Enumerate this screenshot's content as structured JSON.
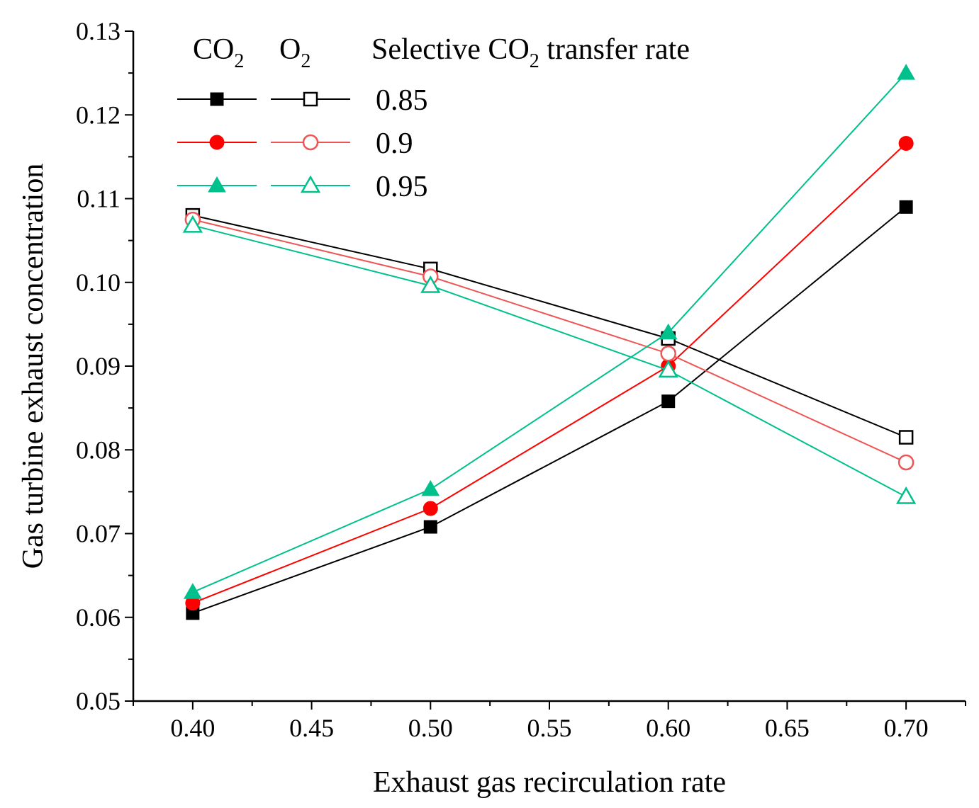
{
  "chart_data": {
    "type": "line",
    "xlabel": "Exhaust gas recirculation rate",
    "ylabel": "Gas turbine exhaust concentration",
    "xlim": [
      0.375,
      0.725
    ],
    "ylim": [
      0.05,
      0.13
    ],
    "x_ticks": [
      "0.40",
      "0.45",
      "0.50",
      "0.55",
      "0.60",
      "0.65",
      "0.70"
    ],
    "y_ticks": [
      "0.05",
      "0.06",
      "0.07",
      "0.08",
      "0.09",
      "0.10",
      "0.11",
      "0.12",
      "0.13"
    ],
    "x": [
      0.4,
      0.5,
      0.6,
      0.7
    ],
    "grid": false,
    "legend": {
      "position": "top-left",
      "col_co2": "CO",
      "col_o2": "O",
      "col_rate_pre": "Selective CO",
      "col_rate_post": " transfer rate",
      "subscript": "2",
      "rates": [
        "0.85",
        "0.9",
        "0.95"
      ]
    },
    "series": [
      {
        "rate": "0.85",
        "gas": "CO2",
        "color": "#000000",
        "marker": "square",
        "filled": true,
        "values": [
          0.0605,
          0.0708,
          0.0858,
          0.109
        ]
      },
      {
        "rate": "0.85",
        "gas": "O2",
        "color": "#000000",
        "marker": "square",
        "filled": false,
        "values": [
          0.108,
          0.1016,
          0.0933,
          0.0815
        ]
      },
      {
        "rate": "0.9",
        "gas": "CO2",
        "color": "#ff0000",
        "marker": "circle",
        "filled": true,
        "values": [
          0.0617,
          0.073,
          0.09,
          0.1166
        ]
      },
      {
        "rate": "0.9",
        "gas": "O2",
        "color": "#ee5555",
        "marker": "circle",
        "filled": false,
        "values": [
          0.1075,
          0.1007,
          0.0915,
          0.0785
        ]
      },
      {
        "rate": "0.95",
        "gas": "CO2",
        "color": "#00c08b",
        "marker": "triangle",
        "filled": true,
        "values": [
          0.063,
          0.0753,
          0.094,
          0.125
        ]
      },
      {
        "rate": "0.95",
        "gas": "O2",
        "color": "#00c08b",
        "marker": "triangle",
        "filled": false,
        "values": [
          0.1068,
          0.0996,
          0.0895,
          0.0744
        ]
      }
    ]
  }
}
